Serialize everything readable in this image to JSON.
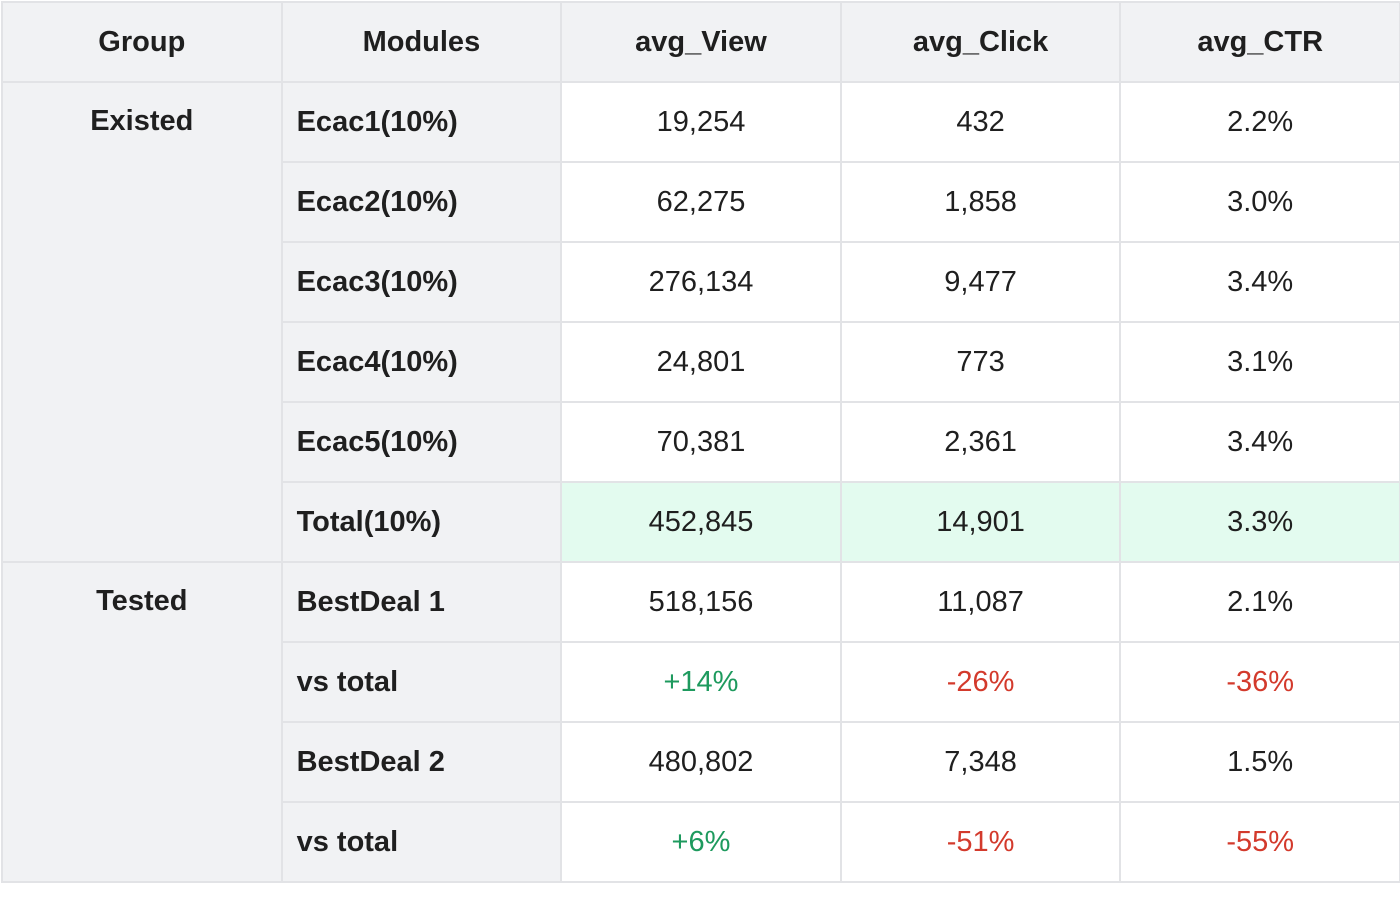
{
  "table": {
    "headers": [
      "Group",
      "Modules",
      "avg_View",
      "avg_Click",
      "avg_CTR"
    ],
    "groups": [
      {
        "name": "Existed",
        "rows": [
          {
            "module": "Ecac1(10%)",
            "view": "19,254",
            "click": "432",
            "ctr": "2.2%"
          },
          {
            "module": "Ecac2(10%)",
            "view": "62,275",
            "click": "1,858",
            "ctr": "3.0%"
          },
          {
            "module": "Ecac3(10%)",
            "view": "276,134",
            "click": "9,477",
            "ctr": "3.4%"
          },
          {
            "module": "Ecac4(10%)",
            "view": "24,801",
            "click": "773",
            "ctr": "3.1%"
          },
          {
            "module": "Ecac5(10%)",
            "view": "70,381",
            "click": "2,361",
            "ctr": "3.4%"
          },
          {
            "module": "Total(10%)",
            "view": "452,845",
            "click": "14,901",
            "ctr": "3.3%"
          }
        ]
      },
      {
        "name": "Tested",
        "rows": [
          {
            "module": "BestDeal 1",
            "view": "518,156",
            "click": "11,087",
            "ctr": "2.1%"
          },
          {
            "module": "vs total",
            "view": "+14%",
            "click": "-26%",
            "ctr": "-36%"
          },
          {
            "module": "BestDeal 2",
            "view": "480,802",
            "click": "7,348",
            "ctr": "1.5%"
          },
          {
            "module": "vs total",
            "view": "+6%",
            "click": "-51%",
            "ctr": "-55%"
          }
        ]
      }
    ]
  },
  "colors": {
    "header_bg": "#f1f2f4",
    "total_highlight": "#e3fbef",
    "positive": "#1e9a5e",
    "negative": "#d33a2c"
  }
}
